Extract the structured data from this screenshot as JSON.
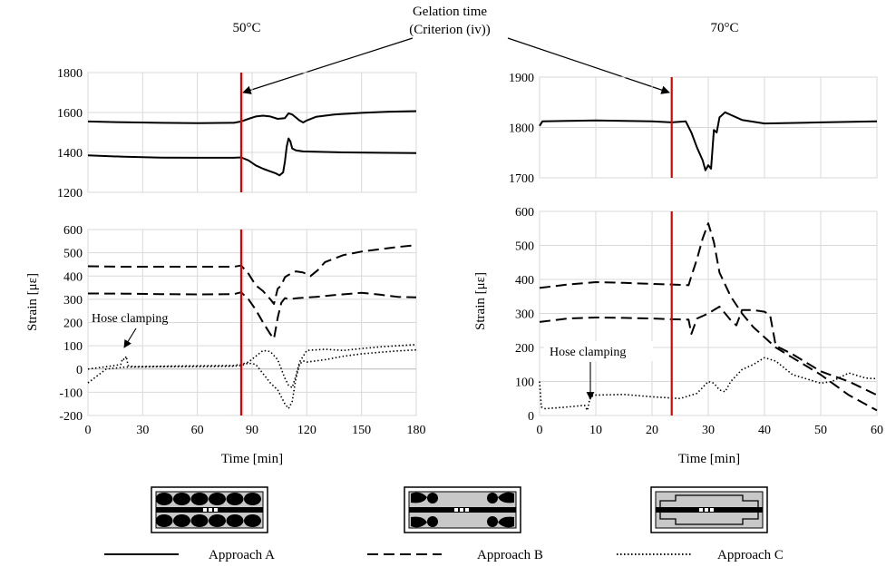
{
  "figure": {
    "annotation_gelation": [
      "Gelation time",
      "(Criterion (iv))"
    ],
    "annotation_hose": "Hose clamping",
    "temp_left": "50°C",
    "temp_right": "70°C",
    "legend": [
      {
        "label": "Approach A",
        "style": "solid"
      },
      {
        "label": "Approach B",
        "style": "dashed"
      },
      {
        "label": "Approach C",
        "style": "dotted"
      }
    ],
    "colors": {
      "series": "#000000",
      "gelation_line": "#e00000",
      "grid": "#d9d9d9",
      "specimen_grey": "#c8c8c8"
    }
  },
  "chart_data": [
    {
      "id": "p50top",
      "type": "line",
      "title": "50°C",
      "ylim": [
        1200,
        1800
      ],
      "yticks": [
        1200,
        1400,
        1600,
        1800
      ],
      "xlim": [
        0,
        180
      ],
      "xticks": [
        0,
        30,
        60,
        90,
        120,
        150,
        180
      ],
      "grid": true,
      "xlabel": "",
      "ylabel": "",
      "gelation_time": 84,
      "series": [
        {
          "name": "Approach A",
          "dash": "solid",
          "x": [
            0,
            20,
            40,
            60,
            80,
            84,
            88,
            92,
            96,
            100,
            104,
            108,
            110,
            112,
            114,
            116,
            118,
            120,
            125,
            135,
            150,
            165,
            180
          ],
          "y": [
            1555,
            1551,
            1548,
            1547,
            1548,
            1555,
            1568,
            1580,
            1584,
            1580,
            1568,
            1572,
            1596,
            1590,
            1575,
            1560,
            1550,
            1560,
            1578,
            1590,
            1598,
            1604,
            1607
          ]
        },
        {
          "name": "Approach A",
          "dash": "solid",
          "x": [
            0,
            20,
            40,
            60,
            80,
            84,
            88,
            92,
            96,
            100,
            103,
            105,
            107,
            108,
            109,
            110,
            111,
            112,
            114,
            118,
            125,
            140,
            160,
            180
          ],
          "y": [
            1385,
            1378,
            1374,
            1373,
            1373,
            1375,
            1360,
            1335,
            1318,
            1305,
            1295,
            1285,
            1300,
            1355,
            1430,
            1470,
            1455,
            1420,
            1410,
            1405,
            1403,
            1400,
            1398,
            1397
          ]
        }
      ]
    },
    {
      "id": "p50bot",
      "type": "line",
      "ylim": [
        -200,
        600
      ],
      "yticks": [
        -200,
        -100,
        0,
        100,
        200,
        300,
        400,
        500,
        600
      ],
      "xlim": [
        0,
        180
      ],
      "xticks": [
        0,
        30,
        60,
        90,
        120,
        150,
        180
      ],
      "grid": true,
      "xlabel": "Time [min]",
      "ylabel": "Strain [με]",
      "gelation_time": 84,
      "series": [
        {
          "name": "Approach B",
          "dash": "dashed",
          "x": [
            0,
            20,
            40,
            60,
            80,
            84,
            88,
            92,
            96,
            100,
            102,
            104,
            106,
            108,
            110,
            114,
            118,
            122,
            126,
            130,
            140,
            150,
            160,
            170,
            180
          ],
          "y": [
            442,
            440,
            440,
            440,
            440,
            445,
            410,
            360,
            335,
            300,
            280,
            345,
            360,
            395,
            405,
            420,
            415,
            400,
            425,
            460,
            490,
            505,
            515,
            525,
            533
          ]
        },
        {
          "name": "Approach B",
          "dash": "dashed",
          "x": [
            0,
            20,
            40,
            60,
            80,
            84,
            88,
            92,
            96,
            100,
            102,
            104,
            106,
            108,
            110,
            115,
            125,
            135,
            150,
            160,
            170,
            180
          ],
          "y": [
            325,
            324,
            322,
            321,
            322,
            330,
            300,
            255,
            200,
            150,
            130,
            220,
            285,
            305,
            300,
            305,
            310,
            318,
            328,
            320,
            310,
            308
          ]
        },
        {
          "name": "Approach C",
          "dash": "dotted",
          "x": [
            0,
            5,
            10,
            15,
            18,
            19,
            20,
            21,
            22,
            25,
            40,
            60,
            80,
            84,
            88,
            92,
            96,
            100,
            104,
            108,
            110,
            112,
            114,
            116,
            120,
            130,
            140,
            150,
            160,
            170,
            180
          ],
          "y": [
            0,
            5,
            10,
            15,
            20,
            45,
            40,
            55,
            15,
            10,
            12,
            14,
            15,
            20,
            30,
            55,
            80,
            75,
            40,
            -40,
            -70,
            -80,
            -30,
            30,
            80,
            85,
            80,
            88,
            95,
            100,
            105
          ]
        },
        {
          "name": "Approach C",
          "dash": "dotted",
          "x": [
            0,
            10,
            20,
            40,
            60,
            80,
            84,
            88,
            92,
            96,
            100,
            104,
            106,
            108,
            110,
            112,
            114,
            116,
            118,
            120,
            130,
            140,
            150,
            160,
            170,
            180
          ],
          "y": [
            -60,
            0,
            8,
            10,
            10,
            12,
            15,
            25,
            20,
            -20,
            -60,
            -90,
            -120,
            -150,
            -170,
            -140,
            -40,
            20,
            35,
            30,
            40,
            55,
            65,
            72,
            78,
            82
          ]
        }
      ]
    },
    {
      "id": "p70top",
      "type": "line",
      "title": "70°C",
      "ylim": [
        1700,
        1900
      ],
      "yticks": [
        1700,
        1800,
        1900
      ],
      "xlim": [
        0,
        60
      ],
      "xticks": [
        0,
        10,
        20,
        30,
        40,
        50,
        60
      ],
      "grid": true,
      "xlabel": "",
      "ylabel": "",
      "gelation_time": 23.5,
      "series": [
        {
          "name": "Approach A",
          "dash": "solid",
          "x": [
            0,
            0.5,
            5,
            10,
            15,
            20,
            23.5,
            26,
            27,
            28,
            29,
            29.5,
            30,
            30.5,
            31,
            31.5,
            32,
            33,
            34,
            36,
            40,
            50,
            60
          ],
          "y": [
            1803,
            1812,
            1813,
            1814,
            1813,
            1812,
            1810,
            1812,
            1790,
            1760,
            1735,
            1715,
            1725,
            1718,
            1795,
            1790,
            1820,
            1830,
            1825,
            1815,
            1808,
            1810,
            1812
          ]
        }
      ]
    },
    {
      "id": "p70bot",
      "type": "line",
      "ylim": [
        0,
        600
      ],
      "yticks": [
        0,
        100,
        200,
        300,
        400,
        500,
        600
      ],
      "xlim": [
        0,
        60
      ],
      "xticks": [
        0,
        10,
        20,
        30,
        40,
        50,
        60
      ],
      "grid": true,
      "xlabel": "Time [min]",
      "ylabel": "Strain [με]",
      "gelation_time": 23.5,
      "series": [
        {
          "name": "Approach B",
          "dash": "dashed",
          "x": [
            0,
            5,
            10,
            15,
            20,
            23.5,
            26.5,
            27,
            28,
            29,
            30,
            31,
            32,
            34,
            36,
            38,
            40,
            42,
            45,
            50,
            55,
            60
          ],
          "y": [
            375,
            385,
            392,
            390,
            387,
            385,
            383,
            410,
            460,
            520,
            565,
            510,
            420,
            350,
            300,
            260,
            230,
            200,
            170,
            120,
            60,
            15
          ]
        },
        {
          "name": "Approach B",
          "dash": "dashed",
          "x": [
            0,
            5,
            10,
            15,
            20,
            23.5,
            26.5,
            27,
            28,
            30,
            32,
            34,
            35,
            36,
            38,
            40,
            41,
            42,
            45,
            50,
            55,
            60
          ],
          "y": [
            275,
            285,
            288,
            287,
            285,
            283,
            282,
            240,
            285,
            300,
            320,
            280,
            265,
            310,
            310,
            305,
            295,
            205,
            180,
            130,
            100,
            60
          ]
        },
        {
          "name": "Approach C",
          "dash": "dotted",
          "x": [
            0,
            0.3,
            1,
            5,
            8,
            8.5,
            9,
            10,
            15,
            20,
            25,
            28,
            30,
            31,
            32,
            33,
            34,
            36,
            38,
            40,
            42,
            45,
            50,
            52,
            55,
            58,
            60
          ],
          "y": [
            100,
            25,
            20,
            25,
            30,
            15,
            55,
            60,
            62,
            55,
            50,
            65,
            100,
            95,
            75,
            70,
            100,
            135,
            150,
            170,
            160,
            120,
            95,
            100,
            125,
            110,
            108
          ]
        }
      ]
    }
  ]
}
